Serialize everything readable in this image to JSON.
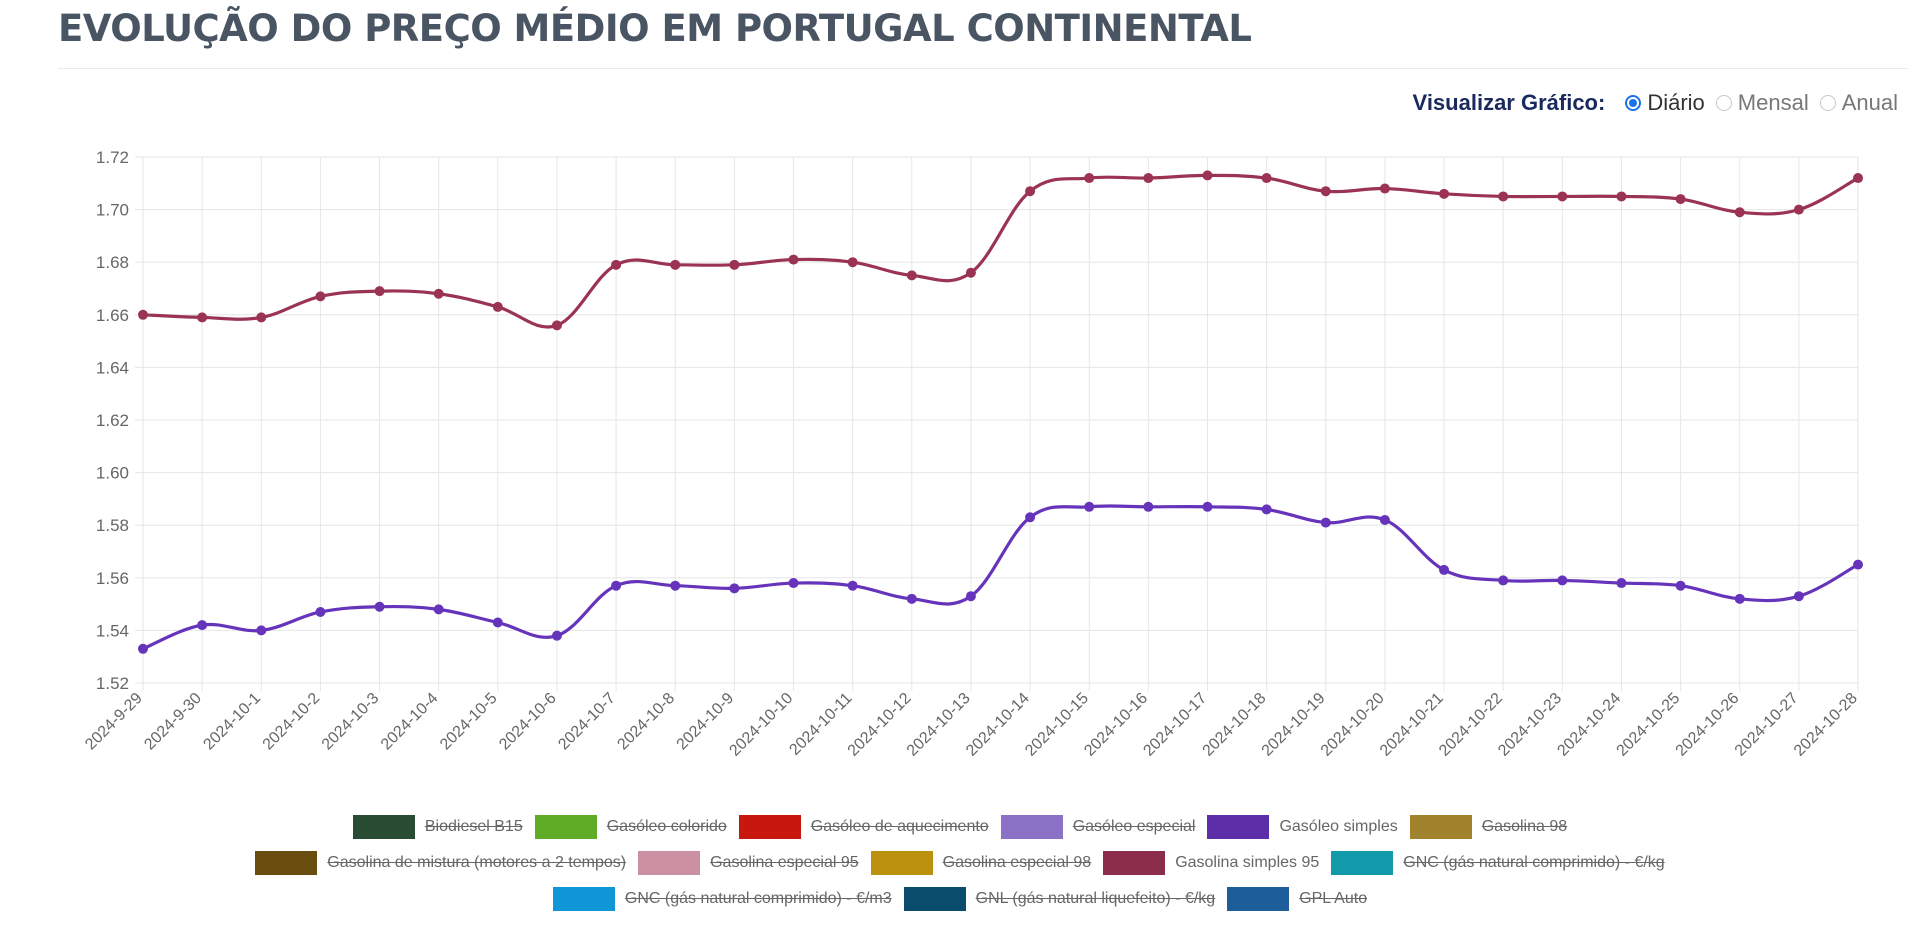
{
  "page": {
    "title": "EVOLUÇÃO DO PREÇO MÉDIO EM PORTUGAL CONTINENTAL"
  },
  "view_toggle": {
    "label": "Visualizar Gráfico:",
    "options": [
      {
        "label": "Diário",
        "selected": true
      },
      {
        "label": "Mensal",
        "selected": false
      },
      {
        "label": "Anual",
        "selected": false
      }
    ]
  },
  "chart_data": {
    "type": "line",
    "title": "",
    "xlabel": "",
    "ylabel": "",
    "ylim": [
      1.52,
      1.72
    ],
    "y_ticks": [
      "1.72",
      "1.70",
      "1.68",
      "1.66",
      "1.64",
      "1.62",
      "1.60",
      "1.58",
      "1.56",
      "1.54",
      "1.52"
    ],
    "grid": true,
    "categories": [
      "2024-9-29",
      "2024-9-30",
      "2024-10-1",
      "2024-10-2",
      "2024-10-3",
      "2024-10-4",
      "2024-10-5",
      "2024-10-6",
      "2024-10-7",
      "2024-10-8",
      "2024-10-9",
      "2024-10-10",
      "2024-10-11",
      "2024-10-12",
      "2024-10-13",
      "2024-10-14",
      "2024-10-15",
      "2024-10-16",
      "2024-10-17",
      "2024-10-18",
      "2024-10-19",
      "2024-10-20",
      "2024-10-21",
      "2024-10-22",
      "2024-10-23",
      "2024-10-24",
      "2024-10-25",
      "2024-10-26",
      "2024-10-27",
      "2024-10-28"
    ],
    "series": [
      {
        "name": "Gasolina simples 95",
        "color": "#9b3353",
        "values": [
          1.66,
          1.659,
          1.659,
          1.667,
          1.669,
          1.668,
          1.663,
          1.656,
          1.679,
          1.679,
          1.679,
          1.681,
          1.68,
          1.675,
          1.676,
          1.707,
          1.712,
          1.712,
          1.713,
          1.712,
          1.707,
          1.708,
          1.706,
          1.705,
          1.705,
          1.705,
          1.704,
          1.699,
          1.7,
          1.712
        ]
      },
      {
        "name": "Gasóleo simples",
        "color": "#6633bb",
        "values": [
          1.533,
          1.542,
          1.54,
          1.547,
          1.549,
          1.548,
          1.543,
          1.538,
          1.557,
          1.557,
          1.556,
          1.558,
          1.557,
          1.552,
          1.553,
          1.583,
          1.587,
          1.587,
          1.587,
          1.586,
          1.581,
          1.582,
          1.563,
          1.559,
          1.559,
          1.558,
          1.557,
          1.552,
          1.553,
          1.565
        ]
      }
    ],
    "legend": {
      "placement": "bottom-center",
      "rows": [
        [
          {
            "label": "Biodiesel B15",
            "color": "#2e5339",
            "hidden": true
          },
          {
            "label": "Gasóleo colorido",
            "color": "#6bbf2a",
            "hidden": true
          },
          {
            "label": "Gasóleo de aquecimento",
            "color": "#dd1a10",
            "hidden": true
          },
          {
            "label": "Gasóleo especial",
            "color": "#9a7fdd",
            "hidden": true
          },
          {
            "label": "Gasóleo simples",
            "color": "#6633bb",
            "hidden": false
          },
          {
            "label": "Gasolina 98",
            "color": "#b39233",
            "hidden": true
          }
        ],
        [
          {
            "label": "Gasolina de mistura (motores a 2 tempos)",
            "color": "#73560f",
            "hidden": true
          },
          {
            "label": "Gasolina especial 95",
            "color": "#e3a0b5",
            "hidden": true
          },
          {
            "label": "Gasolina especial 98",
            "color": "#d1a111",
            "hidden": true
          },
          {
            "label": "Gasolina simples 95",
            "color": "#9b3353",
            "hidden": false
          },
          {
            "label": "GNC (gás natural comprimido) - €/kg",
            "color": "#14abbd",
            "hidden": true
          }
        ],
        [
          {
            "label": "GNC (gás natural comprimido) - €/m3",
            "color": "#12a6ee",
            "hidden": true
          },
          {
            "label": "GNL (gás natural liquefeito) - €/kg",
            "color": "#0a5578",
            "hidden": true
          },
          {
            "label": "GPL Auto",
            "color": "#2068ab",
            "hidden": true
          }
        ]
      ]
    }
  }
}
